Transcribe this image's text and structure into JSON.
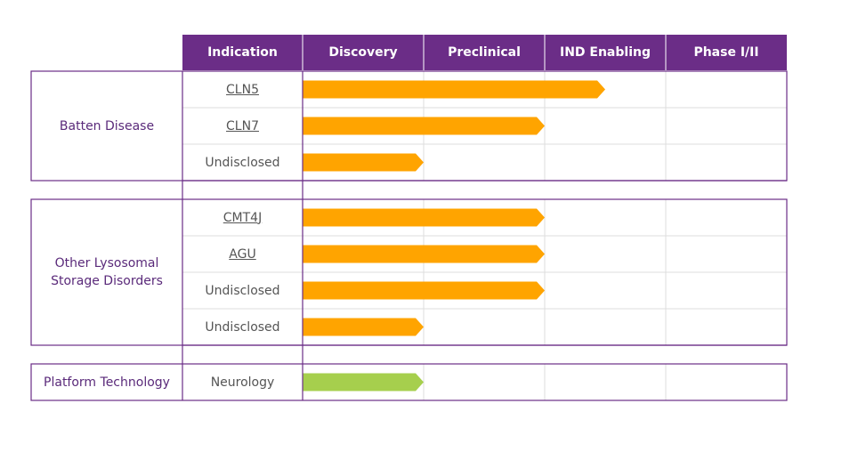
{
  "header": {
    "columns": [
      "Indication",
      "Discovery",
      "Preclinical",
      "IND Enabling",
      "Phase I/II"
    ]
  },
  "groups": [
    {
      "label": "Batten Disease",
      "color": "#ffa400",
      "rows": [
        {
          "indication": "CLN5",
          "link": true,
          "progress": 2.5
        },
        {
          "indication": "CLN7",
          "link": true,
          "progress": 2
        },
        {
          "indication": "Undisclosed",
          "link": false,
          "progress": 1
        }
      ]
    },
    {
      "label": "Other Lysosomal Storage Disorders",
      "color": "#ffa400",
      "rows": [
        {
          "indication": "CMT4J",
          "link": true,
          "progress": 2
        },
        {
          "indication": "AGU",
          "link": true,
          "progress": 2
        },
        {
          "indication": "Undisclosed",
          "link": false,
          "progress": 2
        },
        {
          "indication": "Undisclosed",
          "link": false,
          "progress": 1
        }
      ]
    },
    {
      "label": "Platform Technology",
      "color": "#a6cf4d",
      "rows": [
        {
          "indication": "Neurology",
          "link": false,
          "progress": 1
        }
      ]
    }
  ]
}
